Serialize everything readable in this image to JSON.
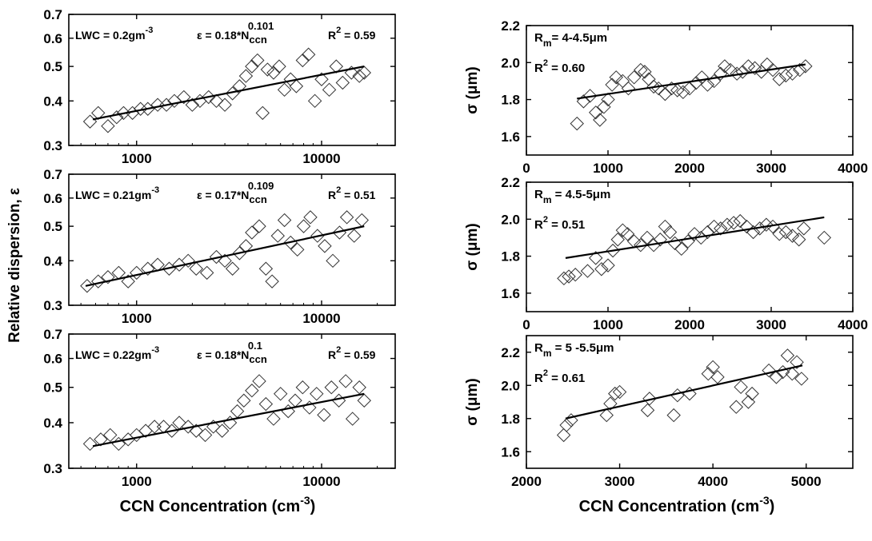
{
  "figure": {
    "left_ylabel": "Relative dispersion, ε",
    "left_xlabel": "CCN Concentration (cm",
    "right_xlabel": "CCN Concentration (cm",
    "xlabel_sup": "-3",
    "xlabel_close": ")"
  },
  "chart_data": [
    {
      "id": "L1",
      "type": "scatter",
      "xscale": "log",
      "yscale": "log",
      "xlim": [
        430,
        25000
      ],
      "ylim": [
        0.3,
        0.7
      ],
      "xticks": [
        1000,
        10000
      ],
      "xtick_labels": [
        "1000",
        "10000"
      ],
      "yticks": [
        0.3,
        0.4,
        0.5,
        0.6,
        0.7
      ],
      "ytick_labels": [
        "0.3",
        "0.4",
        "0.5",
        "0.6",
        "0.7"
      ],
      "ylabel": "",
      "annotation": {
        "lwc": "LWC = 0.2gm",
        "lwc_sup": "-3",
        "eq": "ε = 0.18*N",
        "eq_sub": "ccn",
        "eq_sup": "0.101",
        "r2": "R",
        "r2_sup": "2",
        "r2_val": " = 0.59"
      },
      "fit": {
        "x": [
          580,
          17000
        ],
        "y": [
          0.355,
          0.5
        ]
      },
      "points": [
        [
          560,
          0.35
        ],
        [
          620,
          0.37
        ],
        [
          700,
          0.34
        ],
        [
          780,
          0.36
        ],
        [
          850,
          0.37
        ],
        [
          950,
          0.37
        ],
        [
          1050,
          0.38
        ],
        [
          1150,
          0.38
        ],
        [
          1300,
          0.39
        ],
        [
          1450,
          0.39
        ],
        [
          1600,
          0.4
        ],
        [
          1800,
          0.41
        ],
        [
          2000,
          0.39
        ],
        [
          2200,
          0.4
        ],
        [
          2450,
          0.41
        ],
        [
          2700,
          0.4
        ],
        [
          3000,
          0.39
        ],
        [
          3300,
          0.42
        ],
        [
          3600,
          0.44
        ],
        [
          3900,
          0.47
        ],
        [
          4200,
          0.5
        ],
        [
          4500,
          0.52
        ],
        [
          4800,
          0.37
        ],
        [
          5100,
          0.49
        ],
        [
          5500,
          0.48
        ],
        [
          5900,
          0.5
        ],
        [
          6300,
          0.43
        ],
        [
          6800,
          0.46
        ],
        [
          7300,
          0.44
        ],
        [
          7900,
          0.52
        ],
        [
          8500,
          0.54
        ],
        [
          9200,
          0.4
        ],
        [
          10000,
          0.46
        ],
        [
          11000,
          0.43
        ],
        [
          12000,
          0.5
        ],
        [
          13000,
          0.45
        ],
        [
          14500,
          0.48
        ],
        [
          16000,
          0.47
        ],
        [
          17000,
          0.48
        ]
      ]
    },
    {
      "id": "L2",
      "type": "scatter",
      "xscale": "log",
      "yscale": "log",
      "xlim": [
        430,
        25000
      ],
      "ylim": [
        0.3,
        0.7
      ],
      "xticks": [
        1000,
        10000
      ],
      "xtick_labels": [
        "1000",
        "10000"
      ],
      "yticks": [
        0.3,
        0.4,
        0.5,
        0.6,
        0.7
      ],
      "ytick_labels": [
        "0.3",
        "0.4",
        "0.5",
        "0.6",
        "0.7"
      ],
      "ylabel": "",
      "annotation": {
        "lwc": "LWC = 0.21gm",
        "lwc_sup": "-3",
        "eq": "ε = 0.17*N",
        "eq_sub": "ccn",
        "eq_sup": "0.109",
        "r2": "R",
        "r2_sup": "2",
        "r2_val": " = 0.51"
      },
      "fit": {
        "x": [
          530,
          17000
        ],
        "y": [
          0.34,
          0.5
        ]
      },
      "points": [
        [
          540,
          0.34
        ],
        [
          620,
          0.35
        ],
        [
          700,
          0.36
        ],
        [
          800,
          0.37
        ],
        [
          900,
          0.35
        ],
        [
          1000,
          0.37
        ],
        [
          1150,
          0.38
        ],
        [
          1300,
          0.39
        ],
        [
          1500,
          0.38
        ],
        [
          1700,
          0.39
        ],
        [
          1900,
          0.4
        ],
        [
          2100,
          0.38
        ],
        [
          2400,
          0.37
        ],
        [
          2700,
          0.41
        ],
        [
          3000,
          0.4
        ],
        [
          3300,
          0.38
        ],
        [
          3600,
          0.42
        ],
        [
          3900,
          0.44
        ],
        [
          4200,
          0.48
        ],
        [
          4600,
          0.5
        ],
        [
          5000,
          0.38
        ],
        [
          5400,
          0.35
        ],
        [
          5800,
          0.47
        ],
        [
          6300,
          0.52
        ],
        [
          6800,
          0.45
        ],
        [
          7400,
          0.43
        ],
        [
          8000,
          0.5
        ],
        [
          8700,
          0.53
        ],
        [
          9500,
          0.47
        ],
        [
          10400,
          0.44
        ],
        [
          11500,
          0.4
        ],
        [
          12500,
          0.48
        ],
        [
          13700,
          0.53
        ],
        [
          15000,
          0.47
        ],
        [
          16500,
          0.52
        ]
      ]
    },
    {
      "id": "L3",
      "type": "scatter",
      "xscale": "log",
      "yscale": "log",
      "xlim": [
        430,
        25000
      ],
      "ylim": [
        0.3,
        0.7
      ],
      "xticks": [
        1000,
        10000
      ],
      "xtick_labels": [
        "1000",
        "10000"
      ],
      "yticks": [
        0.3,
        0.4,
        0.5,
        0.6,
        0.7
      ],
      "ytick_labels": [
        "0.3",
        "0.4",
        "0.5",
        "0.6",
        "0.7"
      ],
      "ylabel": "",
      "annotation": {
        "lwc": "LWC = 0.22gm",
        "lwc_sup": "-3",
        "eq": "ε = 0.18*N",
        "eq_sub": "ccn",
        "eq_sup": "0.1",
        "r2": "R",
        "r2_sup": "2",
        "r2_val": " = 0.59"
      },
      "fit": {
        "x": [
          580,
          17000
        ],
        "y": [
          0.345,
          0.48
        ]
      },
      "points": [
        [
          560,
          0.35
        ],
        [
          640,
          0.36
        ],
        [
          720,
          0.37
        ],
        [
          800,
          0.35
        ],
        [
          900,
          0.36
        ],
        [
          1000,
          0.37
        ],
        [
          1120,
          0.38
        ],
        [
          1250,
          0.39
        ],
        [
          1400,
          0.39
        ],
        [
          1550,
          0.38
        ],
        [
          1700,
          0.4
        ],
        [
          1900,
          0.39
        ],
        [
          2100,
          0.38
        ],
        [
          2350,
          0.37
        ],
        [
          2600,
          0.39
        ],
        [
          2900,
          0.38
        ],
        [
          3200,
          0.4
        ],
        [
          3500,
          0.43
        ],
        [
          3800,
          0.46
        ],
        [
          4200,
          0.49
        ],
        [
          4600,
          0.52
        ],
        [
          5000,
          0.45
        ],
        [
          5500,
          0.41
        ],
        [
          6000,
          0.48
        ],
        [
          6600,
          0.43
        ],
        [
          7200,
          0.46
        ],
        [
          7900,
          0.5
        ],
        [
          8600,
          0.44
        ],
        [
          9400,
          0.48
        ],
        [
          10300,
          0.42
        ],
        [
          11300,
          0.5
        ],
        [
          12400,
          0.46
        ],
        [
          13500,
          0.52
        ],
        [
          14700,
          0.41
        ],
        [
          16000,
          0.5
        ],
        [
          17000,
          0.46
        ]
      ]
    },
    {
      "id": "R1",
      "type": "scatter",
      "xscale": "linear",
      "yscale": "linear",
      "xlim": [
        0,
        4000
      ],
      "ylim": [
        1.5,
        2.2
      ],
      "xticks": [
        0,
        1000,
        2000,
        3000,
        4000
      ],
      "xtick_labels": [
        "0",
        "1000",
        "2000",
        "3000",
        "4000"
      ],
      "yticks": [
        1.6,
        1.8,
        2.0,
        2.2
      ],
      "ytick_labels": [
        "1.6",
        "1.8",
        "2.0",
        "2.2"
      ],
      "ylabel": "σ (μm)",
      "annotation": {
        "rm": "R",
        "rm_sub": "m",
        "rm_val": "= 4-4.5μm",
        "r2": "R",
        "r2_sup": "2",
        "r2_val": " = 0.60"
      },
      "fit": {
        "x": [
          620,
          3420
        ],
        "y": [
          1.805,
          1.99
        ]
      },
      "points": [
        [
          620,
          1.67
        ],
        [
          700,
          1.79
        ],
        [
          780,
          1.82
        ],
        [
          850,
          1.73
        ],
        [
          900,
          1.69
        ],
        [
          950,
          1.76
        ],
        [
          1000,
          1.8
        ],
        [
          1050,
          1.88
        ],
        [
          1100,
          1.92
        ],
        [
          1180,
          1.9
        ],
        [
          1250,
          1.86
        ],
        [
          1320,
          1.92
        ],
        [
          1400,
          1.96
        ],
        [
          1450,
          1.95
        ],
        [
          1500,
          1.91
        ],
        [
          1560,
          1.87
        ],
        [
          1620,
          1.86
        ],
        [
          1700,
          1.83
        ],
        [
          1780,
          1.86
        ],
        [
          1850,
          1.85
        ],
        [
          1920,
          1.84
        ],
        [
          2000,
          1.86
        ],
        [
          2080,
          1.89
        ],
        [
          2150,
          1.92
        ],
        [
          2220,
          1.88
        ],
        [
          2300,
          1.9
        ],
        [
          2380,
          1.94
        ],
        [
          2430,
          1.98
        ],
        [
          2500,
          1.96
        ],
        [
          2580,
          1.94
        ],
        [
          2650,
          1.95
        ],
        [
          2720,
          1.98
        ],
        [
          2800,
          1.97
        ],
        [
          2880,
          1.95
        ],
        [
          2950,
          1.99
        ],
        [
          3020,
          1.96
        ],
        [
          3100,
          1.91
        ],
        [
          3180,
          1.93
        ],
        [
          3260,
          1.94
        ],
        [
          3350,
          1.96
        ],
        [
          3420,
          1.98
        ]
      ]
    },
    {
      "id": "R2",
      "type": "scatter",
      "xscale": "linear",
      "yscale": "linear",
      "xlim": [
        0,
        4000
      ],
      "ylim": [
        1.5,
        2.2
      ],
      "xticks": [
        0,
        1000,
        2000,
        3000,
        4000
      ],
      "xtick_labels": [
        "0",
        "1000",
        "2000",
        "3000",
        "4000"
      ],
      "yticks": [
        1.6,
        1.8,
        2.0,
        2.2
      ],
      "ytick_labels": [
        "1.6",
        "1.8",
        "2.0",
        "2.2"
      ],
      "ylabel": "σ (μm)",
      "annotation": {
        "rm": "R",
        "rm_sub": "m",
        "rm_val": " = 4.5-5μm",
        "r2": "R",
        "r2_sup": "2",
        "r2_val": " = 0.51"
      },
      "fit": {
        "x": [
          480,
          3650
        ],
        "y": [
          1.79,
          2.01
        ]
      },
      "points": [
        [
          460,
          1.68
        ],
        [
          520,
          1.69
        ],
        [
          600,
          1.7
        ],
        [
          750,
          1.72
        ],
        [
          850,
          1.79
        ],
        [
          920,
          1.73
        ],
        [
          1000,
          1.75
        ],
        [
          1060,
          1.83
        ],
        [
          1120,
          1.89
        ],
        [
          1180,
          1.94
        ],
        [
          1240,
          1.92
        ],
        [
          1320,
          1.88
        ],
        [
          1400,
          1.86
        ],
        [
          1480,
          1.9
        ],
        [
          1560,
          1.86
        ],
        [
          1640,
          1.89
        ],
        [
          1700,
          1.96
        ],
        [
          1760,
          1.93
        ],
        [
          1820,
          1.87
        ],
        [
          1900,
          1.84
        ],
        [
          1980,
          1.88
        ],
        [
          2060,
          1.92
        ],
        [
          2140,
          1.9
        ],
        [
          2220,
          1.93
        ],
        [
          2300,
          1.96
        ],
        [
          2380,
          1.95
        ],
        [
          2460,
          1.97
        ],
        [
          2540,
          1.98
        ],
        [
          2620,
          1.99
        ],
        [
          2700,
          1.96
        ],
        [
          2780,
          1.93
        ],
        [
          2860,
          1.95
        ],
        [
          2940,
          1.97
        ],
        [
          3020,
          1.96
        ],
        [
          3100,
          1.92
        ],
        [
          3180,
          1.93
        ],
        [
          3260,
          1.91
        ],
        [
          3340,
          1.89
        ],
        [
          3400,
          1.95
        ],
        [
          3650,
          1.9
        ]
      ]
    },
    {
      "id": "R3",
      "type": "scatter",
      "xscale": "linear",
      "yscale": "linear",
      "xlim": [
        2000,
        5500
      ],
      "ylim": [
        1.5,
        2.3
      ],
      "xticks": [
        2000,
        3000,
        4000,
        5000
      ],
      "xtick_labels": [
        "2000",
        "3000",
        "4000",
        "5000"
      ],
      "yticks": [
        1.6,
        1.8,
        2.0,
        2.2
      ],
      "ytick_labels": [
        "1.6",
        "1.8",
        "2.0",
        "2.2"
      ],
      "ylabel": "σ (μm)",
      "annotation": {
        "rm": "R",
        "rm_sub": "m",
        "rm_val": " = 5 -5.5μm",
        "r2": "R",
        "r2_sup": "2",
        "r2_val": " = 0.61"
      },
      "fit": {
        "x": [
          2420,
          4960
        ],
        "y": [
          1.8,
          2.12
        ]
      },
      "points": [
        [
          2400,
          1.7
        ],
        [
          2430,
          1.76
        ],
        [
          2480,
          1.79
        ],
        [
          2860,
          1.82
        ],
        [
          2900,
          1.89
        ],
        [
          2950,
          1.95
        ],
        [
          3000,
          1.96
        ],
        [
          3300,
          1.85
        ],
        [
          3320,
          1.92
        ],
        [
          3580,
          1.82
        ],
        [
          3620,
          1.94
        ],
        [
          3750,
          1.95
        ],
        [
          3950,
          2.07
        ],
        [
          4000,
          2.11
        ],
        [
          4050,
          2.05
        ],
        [
          4250,
          1.87
        ],
        [
          4300,
          1.99
        ],
        [
          4380,
          1.9
        ],
        [
          4420,
          1.95
        ],
        [
          4600,
          2.09
        ],
        [
          4680,
          2.05
        ],
        [
          4750,
          2.08
        ],
        [
          4800,
          2.18
        ],
        [
          4850,
          2.07
        ],
        [
          4900,
          2.14
        ],
        [
          4950,
          2.04
        ]
      ]
    }
  ]
}
